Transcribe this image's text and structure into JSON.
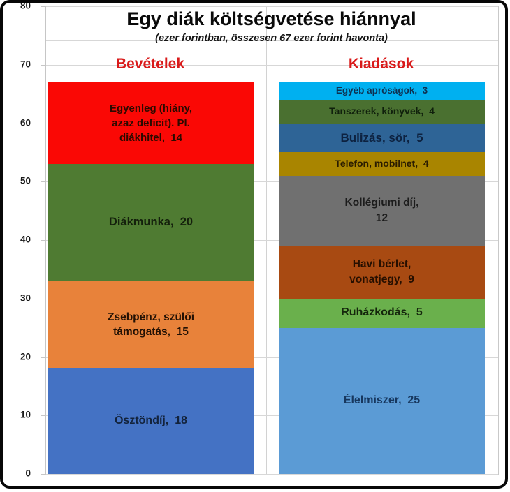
{
  "title": "Egy diák költségvetése hiánnyal",
  "subtitle": "(ezer forintban, összesen 67 ezer forint havonta)",
  "palette": {
    "header_red": "#D91A1A",
    "title_black": "#0a0a0a",
    "grid_gray": "#d7d7d7",
    "axis_gray": "#c6c6c6",
    "frame_black": "#070707"
  },
  "axis": {
    "yticks": [
      0,
      10,
      20,
      30,
      40,
      50,
      60,
      70,
      80
    ]
  },
  "chart_data": {
    "type": "bar",
    "stacked": true,
    "title": "Egy diák költségvetése hiánnyal",
    "subtitle": "(ezer forintban, összesen 67 ezer forint havonta)",
    "unit": "ezer forint / hó",
    "total_per_column": 67,
    "ylim": [
      0,
      80
    ],
    "ytick_step": 10,
    "grid": true,
    "legend": "none",
    "categories": [
      "Bevételek",
      "Kiadások"
    ],
    "columns": [
      {
        "label": "Bevételek",
        "segments": [
          {
            "name": "Ösztöndíj",
            "value": 18,
            "lines": [
              "Ösztöndíj,  18"
            ],
            "color": "#4472C4",
            "text_color": "#13233C",
            "font_size": 16
          },
          {
            "name": "Zsebpénz, szülői támogatás",
            "value": 15,
            "lines": [
              "Zsebpénz, szülői",
              "támogatás,  15"
            ],
            "color": "#E8823A",
            "text_color": "#231104",
            "font_size": 15.5
          },
          {
            "name": "Diákmunka",
            "value": 20,
            "lines": [
              "Diákmunka,  20"
            ],
            "color": "#4F7B32",
            "text_color": "#14200C",
            "font_size": 16.5
          },
          {
            "name": "Egyenleg (hiány, azaz deficit). Pl. diákhitel",
            "value": 14,
            "lines": [
              "Egyenleg (hiány,",
              "azaz deficit). Pl.",
              "diákhitel,  14"
            ],
            "color": "#FA0805",
            "text_color": "#2B0A00",
            "font_size": 15
          }
        ]
      },
      {
        "label": "Kiadások",
        "segments": [
          {
            "name": "Élelmiszer",
            "value": 25,
            "lines": [
              "Élelmiszer,  25"
            ],
            "color": "#5B9BD5",
            "text_color": "#17375E",
            "font_size": 16
          },
          {
            "name": "Ruházkodás",
            "value": 5,
            "lines": [
              "Ruházkodás,  5"
            ],
            "color": "#6AB04C",
            "text_color": "#14260C",
            "font_size": 16
          },
          {
            "name": "Havi bérlet, vonatjegy",
            "value": 9,
            "lines": [
              "Havi bérlet,",
              "vonatjegy,  9"
            ],
            "color": "#A84A12",
            "text_color": "#260F00",
            "font_size": 15.5
          },
          {
            "name": "Kollégiumi díj",
            "value": 12,
            "lines": [
              "Kollégiumi díj,",
              "12"
            ],
            "color": "#707070",
            "text_color": "#1c1c1c",
            "font_size": 15.5
          },
          {
            "name": "Telefon, mobilnet",
            "value": 4,
            "lines": [
              "Telefon, mobilnet,  4"
            ],
            "color": "#A98500",
            "text_color": "#2A1C00",
            "font_size": 14
          },
          {
            "name": "Bulizás, sör",
            "value": 5,
            "lines": [
              "Bulizás, sör,  5"
            ],
            "color": "#2E6496",
            "text_color": "#0D2240",
            "font_size": 17
          },
          {
            "name": "Tanszerek, könyvek",
            "value": 4,
            "lines": [
              "Tanszerek, könyvek,  4"
            ],
            "color": "#4A7030",
            "text_color": "#10200C",
            "font_size": 14
          },
          {
            "name": "Egyéb apróságok",
            "value": 3,
            "lines": [
              "Egyéb apróságok,  3"
            ],
            "color": "#00B0F0",
            "text_color": "#0E3050",
            "font_size": 13.5
          }
        ]
      }
    ]
  }
}
